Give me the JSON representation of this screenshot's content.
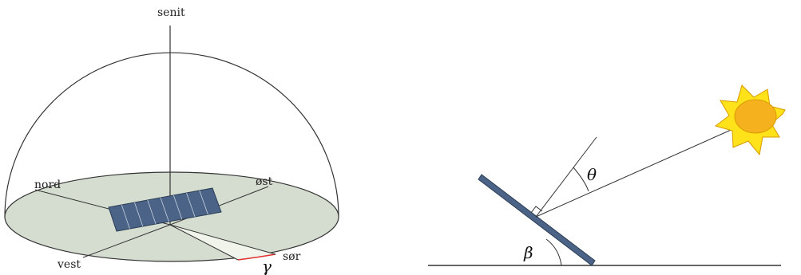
{
  "sky_diagram": {
    "labels": {
      "zenith": "senit",
      "north": "nord",
      "east": "øst",
      "west": "vest",
      "south": "sør"
    },
    "azimuth_symbol": "γ"
  },
  "tilt_diagram": {
    "incidence_symbol": "θ",
    "tilt_symbol": "β"
  },
  "colors": {
    "ground_disk": "#d5ddd0",
    "azimuth_wedge": "#f0f4ea",
    "azimuth_arc": "#e03030",
    "panel": "#4a6387",
    "panel_edge": "#2c3e55",
    "sun_body": "#f5b21e",
    "sun_rays": "#ffe21a",
    "sun_outline": "#d89a00",
    "line": "#333333"
  }
}
